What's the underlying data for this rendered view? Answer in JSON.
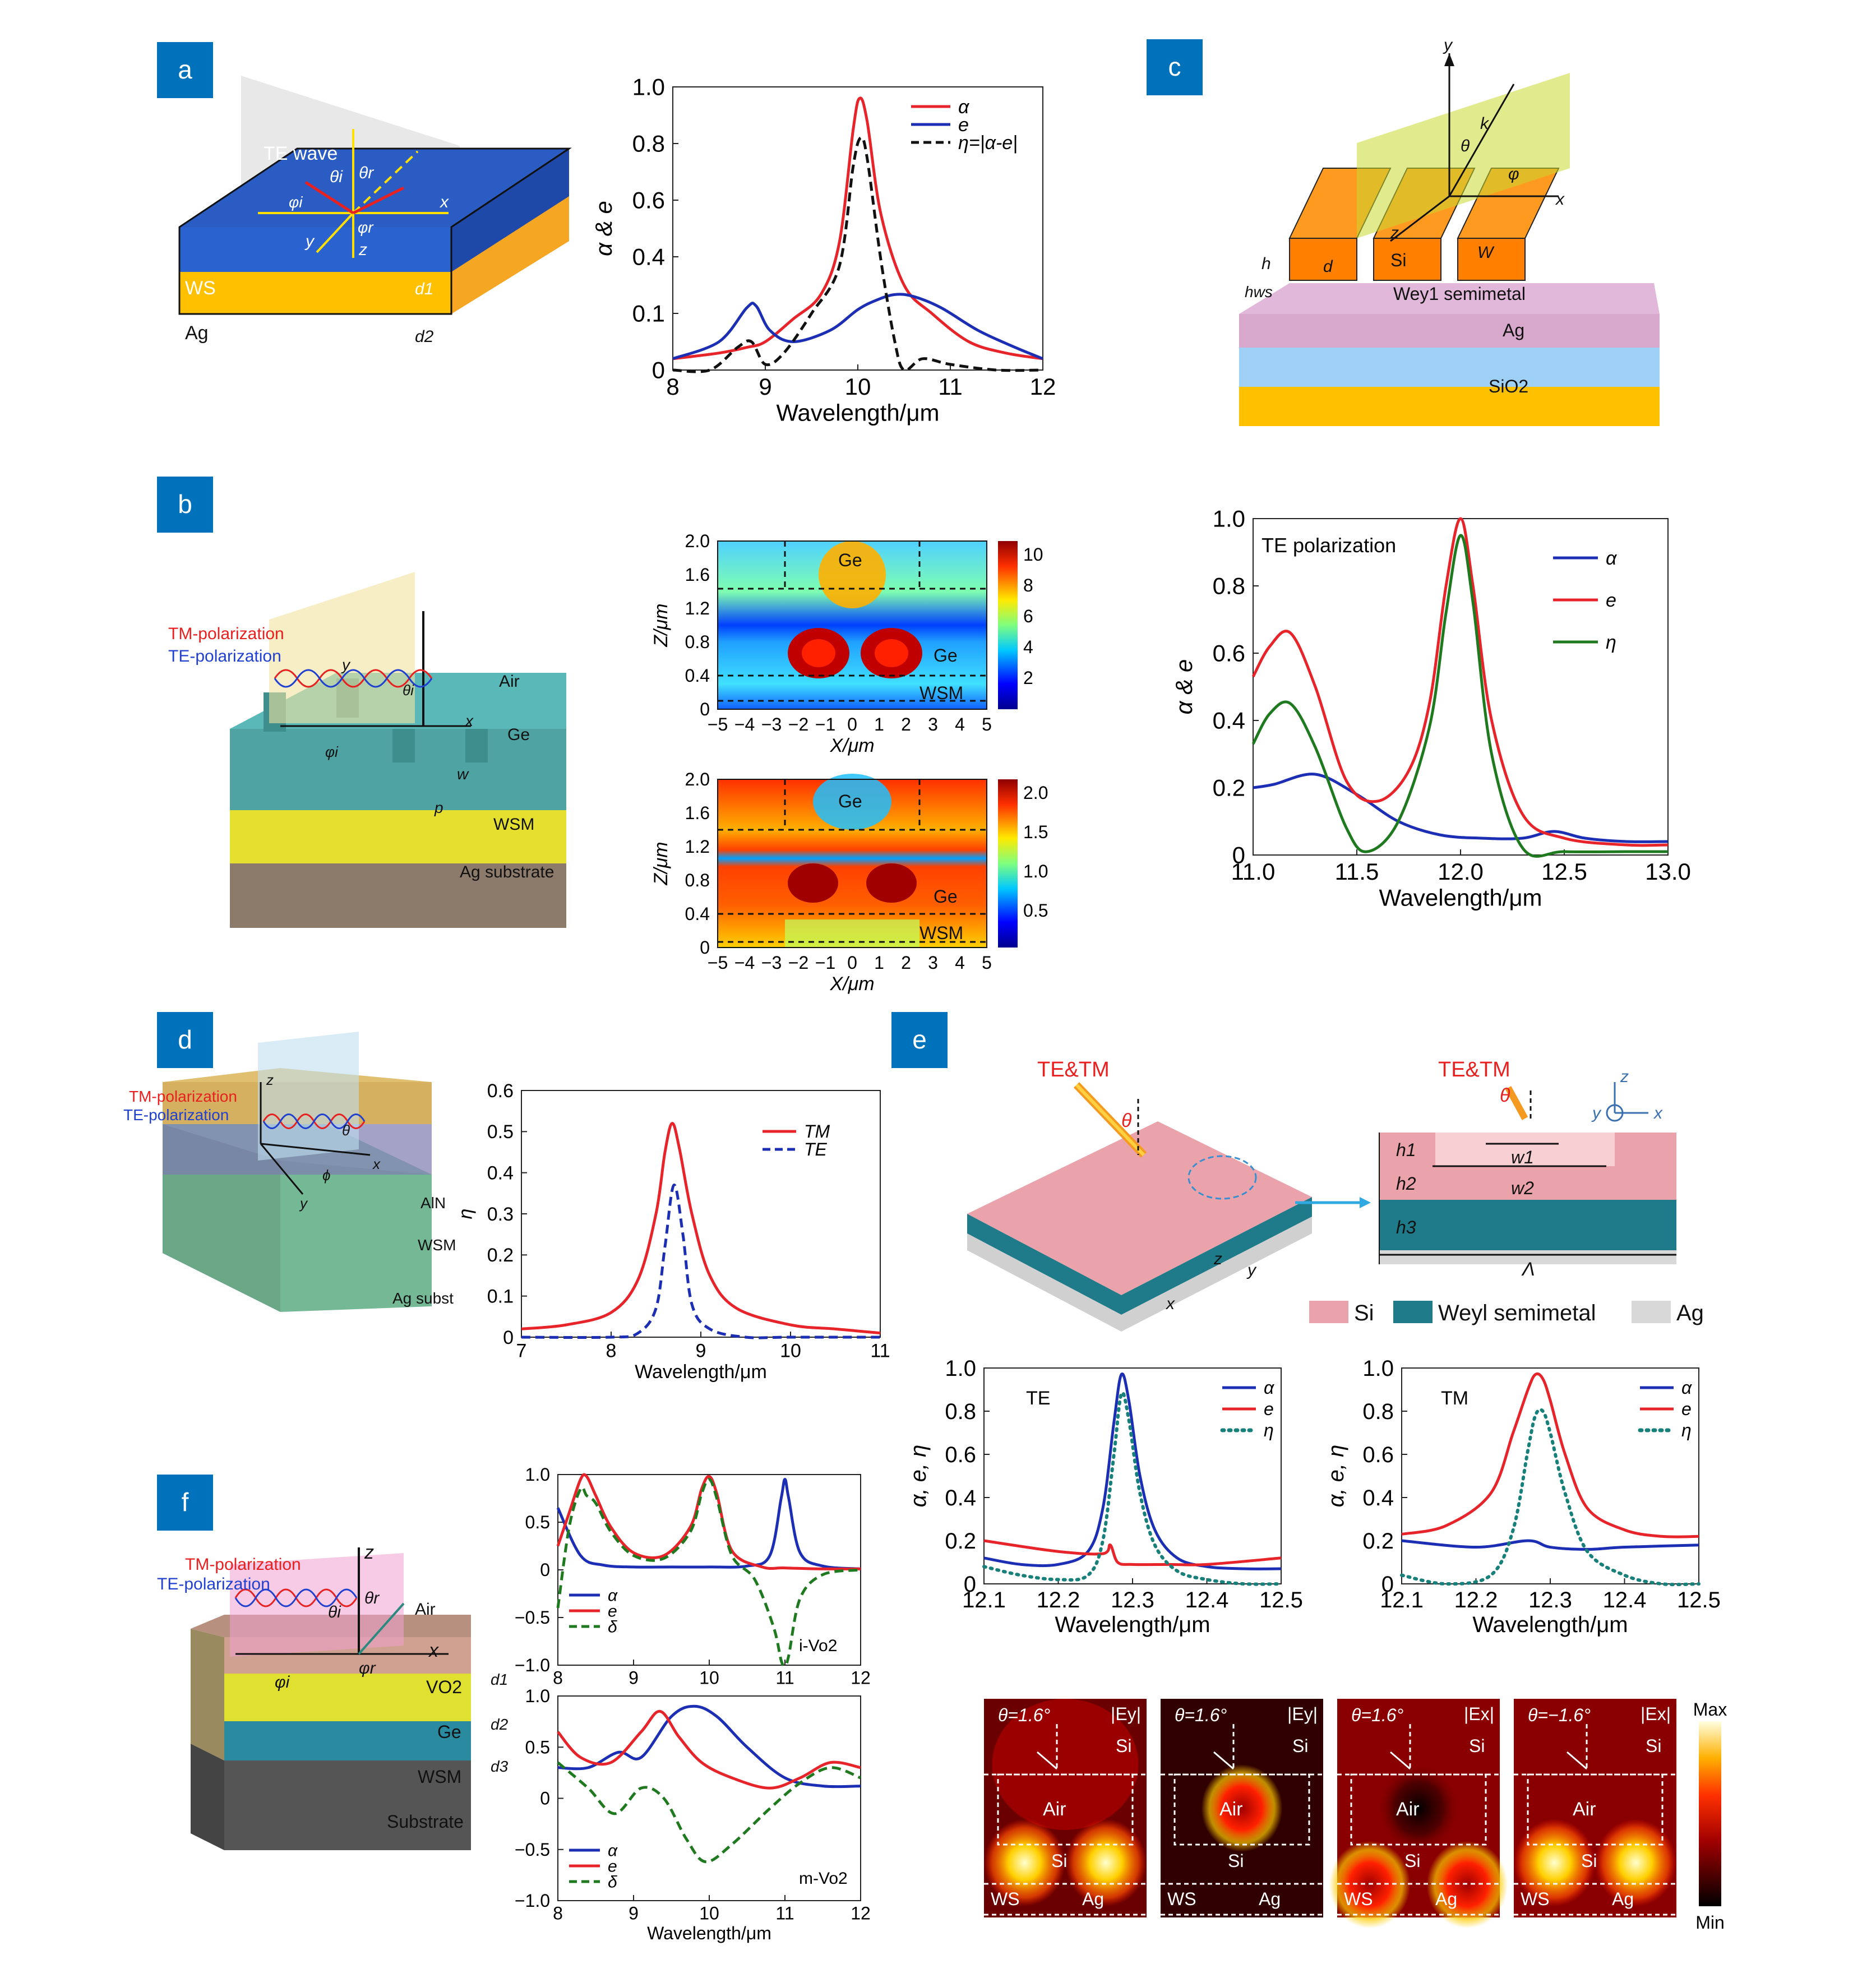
{
  "colors": {
    "badge": "#0072bc",
    "red": "#e8242b",
    "blue": "#1c2fb4",
    "green": "#1f7a1f",
    "teal": "#17807a",
    "black": "#111111"
  },
  "badges": {
    "a": "a",
    "b": "b",
    "c": "c",
    "d": "d",
    "e": "e",
    "f": "f"
  },
  "a": {
    "labels": {
      "wave": "TE wave",
      "ti": "θi",
      "tr": "θr",
      "pi": "φi",
      "pr": "φr",
      "x": "x",
      "y": "y",
      "z": "z",
      "ws": "WS",
      "ag": "Ag",
      "d1": "d1",
      "d2": "d2"
    },
    "chart": {
      "xlabel": "Wavelength/μm",
      "ylabel": "α & e",
      "xticks": [
        "8",
        "9",
        "10",
        "11",
        "12"
      ],
      "yticks": [
        "0",
        "0.1",
        "0.4",
        "0.6",
        "0.8",
        "1.0"
      ],
      "legend": [
        "α",
        "e",
        "η=|α-e|"
      ]
    }
  },
  "chart_data": [
    {
      "panel": "a",
      "type": "line",
      "xlim": [
        8,
        12
      ],
      "ylim": [
        0,
        1
      ],
      "series": [
        {
          "name": "α",
          "color": "red",
          "x": [
            8,
            8.5,
            8.8,
            9,
            9.3,
            9.6,
            9.8,
            9.95,
            10.02,
            10.1,
            10.25,
            10.5,
            10.8,
            11.2,
            11.6,
            12
          ],
          "y": [
            0.02,
            0.03,
            0.04,
            0.05,
            0.09,
            0.2,
            0.45,
            0.85,
            0.96,
            0.88,
            0.55,
            0.25,
            0.1,
            0.05,
            0.03,
            0.02
          ]
        },
        {
          "name": "e",
          "color": "blue",
          "x": [
            8,
            8.5,
            8.8,
            8.9,
            9.05,
            9.3,
            9.7,
            10.0,
            10.2,
            10.4,
            10.6,
            10.9,
            11.3,
            11.7,
            12
          ],
          "y": [
            0.02,
            0.05,
            0.13,
            0.14,
            0.07,
            0.05,
            0.07,
            0.12,
            0.17,
            0.2,
            0.19,
            0.13,
            0.07,
            0.04,
            0.02
          ]
        },
        {
          "name": "η=|α-e|",
          "color": "black",
          "dash": true,
          "x": [
            8,
            8.4,
            8.7,
            8.85,
            9,
            9.2,
            9.5,
            9.8,
            9.95,
            10.03,
            10.1,
            10.25,
            10.4,
            10.5,
            10.7,
            11,
            11.5,
            12
          ],
          "y": [
            0.0,
            0.0,
            0.04,
            0.05,
            0.01,
            0.03,
            0.1,
            0.35,
            0.72,
            0.82,
            0.75,
            0.38,
            0.05,
            0.0,
            0.02,
            0.01,
            0.0,
            0.0
          ]
        }
      ]
    },
    {
      "panel": "c",
      "type": "line",
      "xlim": [
        11,
        13
      ],
      "ylim": [
        0,
        1
      ],
      "series": [
        {
          "name": "α",
          "color": "blue",
          "x": [
            11,
            11.1,
            11.3,
            11.5,
            11.7,
            11.9,
            12.1,
            12.3,
            12.45,
            12.6,
            12.8,
            13
          ],
          "y": [
            0.2,
            0.21,
            0.24,
            0.18,
            0.1,
            0.06,
            0.05,
            0.05,
            0.07,
            0.05,
            0.04,
            0.04
          ]
        },
        {
          "name": "e",
          "color": "red",
          "x": [
            11,
            11.08,
            11.18,
            11.3,
            11.45,
            11.6,
            11.75,
            11.85,
            11.93,
            12,
            12.06,
            12.15,
            12.3,
            12.5,
            12.8,
            13
          ],
          "y": [
            0.53,
            0.62,
            0.66,
            0.5,
            0.22,
            0.16,
            0.25,
            0.45,
            0.8,
            1.0,
            0.8,
            0.4,
            0.12,
            0.05,
            0.03,
            0.03
          ]
        },
        {
          "name": "η",
          "color": "green",
          "x": [
            11,
            11.08,
            11.18,
            11.3,
            11.45,
            11.55,
            11.7,
            11.85,
            11.93,
            12,
            12.06,
            12.15,
            12.3,
            12.5,
            12.8,
            13
          ],
          "y": [
            0.33,
            0.42,
            0.45,
            0.32,
            0.08,
            0.01,
            0.1,
            0.38,
            0.72,
            0.95,
            0.75,
            0.3,
            0.02,
            0.01,
            0.01,
            0.01
          ]
        }
      ]
    },
    {
      "panel": "d",
      "type": "line",
      "xlim": [
        7,
        11
      ],
      "ylim": [
        0,
        0.6
      ],
      "series": [
        {
          "name": "TM",
          "color": "red",
          "x": [
            7,
            7.5,
            8,
            8.3,
            8.5,
            8.6,
            8.68,
            8.76,
            8.9,
            9.1,
            9.4,
            10,
            10.5,
            11
          ],
          "y": [
            0.02,
            0.03,
            0.06,
            0.14,
            0.3,
            0.45,
            0.52,
            0.46,
            0.3,
            0.15,
            0.07,
            0.03,
            0.02,
            0.01
          ]
        },
        {
          "name": "TE",
          "color": "blue",
          "dash": true,
          "x": [
            7,
            8,
            8.3,
            8.5,
            8.6,
            8.7,
            8.8,
            8.9,
            9.1,
            9.5,
            10,
            11
          ],
          "y": [
            0,
            0,
            0.01,
            0.07,
            0.22,
            0.37,
            0.25,
            0.08,
            0.02,
            0.0,
            0.0,
            0.0
          ]
        }
      ]
    },
    {
      "panel": "e-TE",
      "type": "line",
      "xlim": [
        12.1,
        12.5
      ],
      "ylim": [
        0,
        1
      ],
      "series": [
        {
          "name": "α",
          "color": "blue",
          "x": [
            12.1,
            12.15,
            12.2,
            12.24,
            12.26,
            12.275,
            12.285,
            12.295,
            12.31,
            12.33,
            12.36,
            12.4,
            12.45,
            12.5
          ],
          "y": [
            0.12,
            0.09,
            0.09,
            0.15,
            0.35,
            0.75,
            0.97,
            0.85,
            0.5,
            0.25,
            0.12,
            0.08,
            0.07,
            0.07
          ]
        },
        {
          "name": "e",
          "color": "red",
          "x": [
            12.1,
            12.2,
            12.26,
            12.27,
            12.28,
            12.3,
            12.35,
            12.4,
            12.5
          ],
          "y": [
            0.2,
            0.15,
            0.14,
            0.18,
            0.1,
            0.09,
            0.09,
            0.09,
            0.12
          ]
        },
        {
          "name": "η",
          "color": "teal",
          "dotted": true,
          "x": [
            12.1,
            12.15,
            12.2,
            12.24,
            12.26,
            12.275,
            12.285,
            12.295,
            12.31,
            12.33,
            12.36,
            12.4,
            12.45,
            12.5
          ],
          "y": [
            0.08,
            0.04,
            0.02,
            0.04,
            0.2,
            0.6,
            0.88,
            0.76,
            0.42,
            0.18,
            0.06,
            0.02,
            0.0,
            0.0
          ]
        }
      ]
    },
    {
      "panel": "e-TM",
      "type": "line",
      "xlim": [
        12.1,
        12.5
      ],
      "ylim": [
        0,
        1
      ],
      "series": [
        {
          "name": "α",
          "color": "blue",
          "x": [
            12.1,
            12.2,
            12.27,
            12.3,
            12.35,
            12.4,
            12.5
          ],
          "y": [
            0.2,
            0.17,
            0.2,
            0.17,
            0.16,
            0.17,
            0.18
          ]
        },
        {
          "name": "e",
          "color": "red",
          "x": [
            12.1,
            12.16,
            12.22,
            12.25,
            12.27,
            12.28,
            12.29,
            12.3,
            12.32,
            12.35,
            12.4,
            12.45,
            12.5
          ],
          "y": [
            0.23,
            0.27,
            0.42,
            0.7,
            0.9,
            0.97,
            0.95,
            0.85,
            0.6,
            0.35,
            0.25,
            0.22,
            0.22
          ]
        },
        {
          "name": "η",
          "color": "teal",
          "dotted": true,
          "x": [
            12.1,
            12.16,
            12.22,
            12.25,
            12.27,
            12.28,
            12.29,
            12.3,
            12.32,
            12.35,
            12.4,
            12.45,
            12.5
          ],
          "y": [
            0.04,
            0.0,
            0.04,
            0.25,
            0.62,
            0.78,
            0.8,
            0.7,
            0.42,
            0.15,
            0.04,
            0.0,
            0.0
          ]
        }
      ]
    },
    {
      "panel": "f-i",
      "type": "line",
      "xlim": [
        8,
        12
      ],
      "ylim": [
        -1,
        1
      ],
      "series": [
        {
          "name": "α",
          "color": "blue",
          "x": [
            8,
            8.3,
            8.6,
            9,
            9.5,
            10,
            10.5,
            10.8,
            10.95,
            11,
            11.05,
            11.2,
            11.5,
            12
          ],
          "y": [
            0.65,
            0.15,
            0.05,
            0.03,
            0.03,
            0.03,
            0.04,
            0.15,
            0.75,
            0.95,
            0.75,
            0.18,
            0.04,
            0.01
          ]
        },
        {
          "name": "e",
          "color": "red",
          "x": [
            8,
            8.15,
            8.3,
            8.38,
            8.5,
            8.7,
            9,
            9.4,
            9.75,
            9.9,
            10,
            10.1,
            10.3,
            10.7,
            11,
            11.5,
            12
          ],
          "y": [
            0.25,
            0.6,
            0.95,
            0.98,
            0.78,
            0.45,
            0.18,
            0.15,
            0.45,
            0.85,
            0.98,
            0.8,
            0.2,
            0.03,
            0.02,
            0.01,
            0.01
          ]
        },
        {
          "name": "δ",
          "color": "green",
          "dash": true,
          "x": [
            8,
            8.15,
            8.3,
            8.38,
            8.5,
            8.7,
            9,
            9.4,
            9.75,
            9.9,
            10,
            10.1,
            10.3,
            10.6,
            10.85,
            10.95,
            11,
            11.05,
            11.2,
            11.5,
            12
          ],
          "y": [
            -0.4,
            0.45,
            0.85,
            0.78,
            0.7,
            0.4,
            0.15,
            0.12,
            0.4,
            0.8,
            0.95,
            0.75,
            0.15,
            -0.1,
            -0.6,
            -0.95,
            -1.0,
            -0.9,
            -0.3,
            -0.05,
            0.0
          ]
        }
      ]
    },
    {
      "panel": "f-m",
      "type": "line",
      "xlim": [
        8,
        12
      ],
      "ylim": [
        -1,
        1
      ],
      "series": [
        {
          "name": "α",
          "color": "blue",
          "x": [
            8,
            8.4,
            8.8,
            9.1,
            9.5,
            9.8,
            10.1,
            10.5,
            11,
            11.5,
            12
          ],
          "y": [
            0.3,
            0.3,
            0.45,
            0.4,
            0.8,
            0.9,
            0.8,
            0.5,
            0.2,
            0.12,
            0.12
          ]
        },
        {
          "name": "e",
          "color": "red",
          "x": [
            8,
            8.3,
            8.7,
            9.1,
            9.35,
            9.6,
            9.9,
            10.3,
            10.8,
            11.2,
            11.6,
            12
          ],
          "y": [
            0.65,
            0.4,
            0.35,
            0.65,
            0.85,
            0.6,
            0.35,
            0.2,
            0.1,
            0.2,
            0.35,
            0.3
          ]
        },
        {
          "name": "δ",
          "color": "green",
          "dash": true,
          "x": [
            8,
            8.4,
            8.75,
            9.1,
            9.4,
            9.7,
            9.95,
            10.3,
            10.8,
            11.2,
            11.6,
            12
          ],
          "y": [
            0.35,
            0.1,
            -0.15,
            0.1,
            0.0,
            -0.4,
            -0.62,
            -0.45,
            -0.1,
            0.15,
            0.3,
            0.2
          ]
        }
      ]
    }
  ],
  "b": {
    "labels": {
      "tm": "TM-polarization",
      "te": "TE-polarization",
      "air": "Air",
      "ge": "Ge",
      "wsm": "WSM",
      "agsub": "Ag substrate",
      "w": "w",
      "p": "p",
      "y": "y",
      "x": "x",
      "phi": "φi",
      "theta": "θi"
    },
    "map": {
      "ylabel": "Z/μm",
      "xlabel": "X/μm",
      "xticks": [
        "−5",
        "−4",
        "−3",
        "−2",
        "−1",
        "0",
        "1",
        "2",
        "3",
        "4",
        "5"
      ],
      "yticks": [
        "0",
        "0.4",
        "0.8",
        "1.2",
        "1.6",
        "2.0"
      ],
      "cb1": [
        "2",
        "4",
        "6",
        "8",
        "10"
      ],
      "cb2": [
        "0.5",
        "1.0",
        "1.5",
        "2.0"
      ],
      "ge": "Ge",
      "wsm": "WSM"
    }
  },
  "c": {
    "labels": {
      "y": "y",
      "k": "k",
      "theta": "θ",
      "phi": "φ",
      "x": "x",
      "z": "z",
      "si": "Si",
      "h": "h",
      "d": "d",
      "w": "W",
      "hws": "hws",
      "wey": "Wey1 semimetal",
      "ag": "Ag",
      "sio2": "SiO2"
    },
    "chart": {
      "xlabel": "Wavelength/μm",
      "ylabel": "α & e",
      "xticks": [
        "11.0",
        "11.5",
        "12.0",
        "12.5",
        "13.0"
      ],
      "yticks": [
        "0",
        "0.2",
        "0.4",
        "0.6",
        "0.8",
        "1.0"
      ],
      "title": "TE polarization",
      "legend": [
        "α",
        "e",
        "η"
      ]
    }
  },
  "d": {
    "labels": {
      "tm": "TM-polarization",
      "te": "TE-polarization",
      "z": "z",
      "x": "x",
      "y": "y",
      "theta": "θ",
      "phi": "ϕ",
      "aln": "AlN",
      "wsm": "WSM",
      "ag": "Ag subst"
    },
    "chart": {
      "xlabel": "Wavelength/μm",
      "ylabel": "η",
      "xticks": [
        "7",
        "8",
        "9",
        "10",
        "11"
      ],
      "yticks": [
        "0",
        "0.1",
        "0.2",
        "0.3",
        "0.4",
        "0.5",
        "0.6"
      ],
      "legend": [
        "TM",
        "TE"
      ]
    }
  },
  "e": {
    "labels": {
      "tetm": "TE&TM",
      "theta": "θ",
      "z": "z",
      "x": "x",
      "y": "y",
      "h1": "h1",
      "h2": "h2",
      "h3": "h3",
      "w1": "w1",
      "w2": "w2",
      "lambda": "Λ",
      "si": "Si",
      "weyl": "Weyl semimetal",
      "ag": "Ag"
    },
    "chart": {
      "xlabel": "Wavelength/μm",
      "ylabel": "α, e, η",
      "xticks": [
        "12.1",
        "12.2",
        "12.3",
        "12.4",
        "12.5"
      ],
      "yticks": [
        "0",
        "0.2",
        "0.4",
        "0.6",
        "0.8",
        "1.0"
      ],
      "teTitle": "TE",
      "tmTitle": "TM",
      "legend": [
        "α",
        "e",
        "η"
      ]
    },
    "maps": [
      {
        "angle": "θ=1.6°",
        "comp": "|Ey|"
      },
      {
        "angle": "θ=1.6°",
        "comp": "|Ey|"
      },
      {
        "angle": "θ=1.6°",
        "comp": "|Ex|"
      },
      {
        "angle": "θ=−1.6°",
        "comp": "|Ex|"
      }
    ],
    "mapLabels": {
      "si": "Si",
      "air": "Air",
      "ws": "WS",
      "ag": "Ag",
      "max": "Max",
      "min": "Min"
    }
  },
  "f": {
    "labels": {
      "tm": "TM-polarization",
      "te": "TE-polarization",
      "z": "z",
      "x": "x",
      "air": "Air",
      "ti": "θi",
      "tr": "θr",
      "pi": "φi",
      "pr": "φr",
      "vo2": "VO2",
      "ge": "Ge",
      "wsm": "WSM",
      "sub": "Substrate",
      "d1": "d1",
      "d2": "d2",
      "d3": "d3"
    },
    "chart": {
      "xlabel": "Wavelength/μm",
      "xticks": [
        "8",
        "9",
        "10",
        "11",
        "12"
      ],
      "yticks": [
        "−1.0",
        "−0.5",
        "0",
        "0.5",
        "1.0"
      ],
      "iTitle": "i-Vo2",
      "mTitle": "m-Vo2",
      "legend": [
        "α",
        "e",
        "δ"
      ]
    }
  }
}
